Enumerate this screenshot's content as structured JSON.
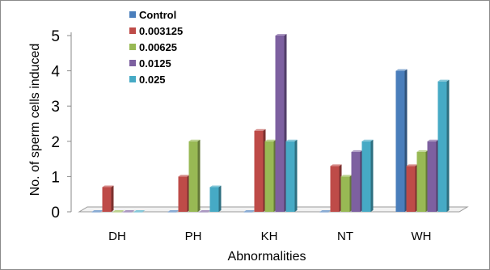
{
  "chart_data": {
    "type": "bar",
    "title": "",
    "xlabel": "Abnormalities",
    "ylabel": "No. of sperm cells induced",
    "categories": [
      "DH",
      "PH",
      "KH",
      "NT",
      "WH"
    ],
    "ylim": [
      0,
      5
    ],
    "yticks": [
      0,
      1,
      2,
      3,
      4,
      5
    ],
    "grid": false,
    "legend_position": "top-left",
    "style": "3d-clustered-column",
    "series": [
      {
        "name": "Control",
        "color": "#4a7ebb",
        "values": [
          0,
          0,
          0,
          0,
          4
        ]
      },
      {
        "name": "0.003125",
        "color": "#be4b48",
        "values": [
          0.7,
          1,
          2.3,
          1.3,
          1.3
        ]
      },
      {
        "name": "0.00625",
        "color": "#98b954",
        "values": [
          0,
          2,
          2,
          1,
          1.7
        ]
      },
      {
        "name": "0.0125",
        "color": "#7d60a0",
        "values": [
          0,
          0,
          5,
          1.7,
          2
        ]
      },
      {
        "name": "0.025",
        "color": "#46aac5",
        "values": [
          0,
          0.7,
          2,
          2,
          3.7
        ]
      }
    ]
  }
}
